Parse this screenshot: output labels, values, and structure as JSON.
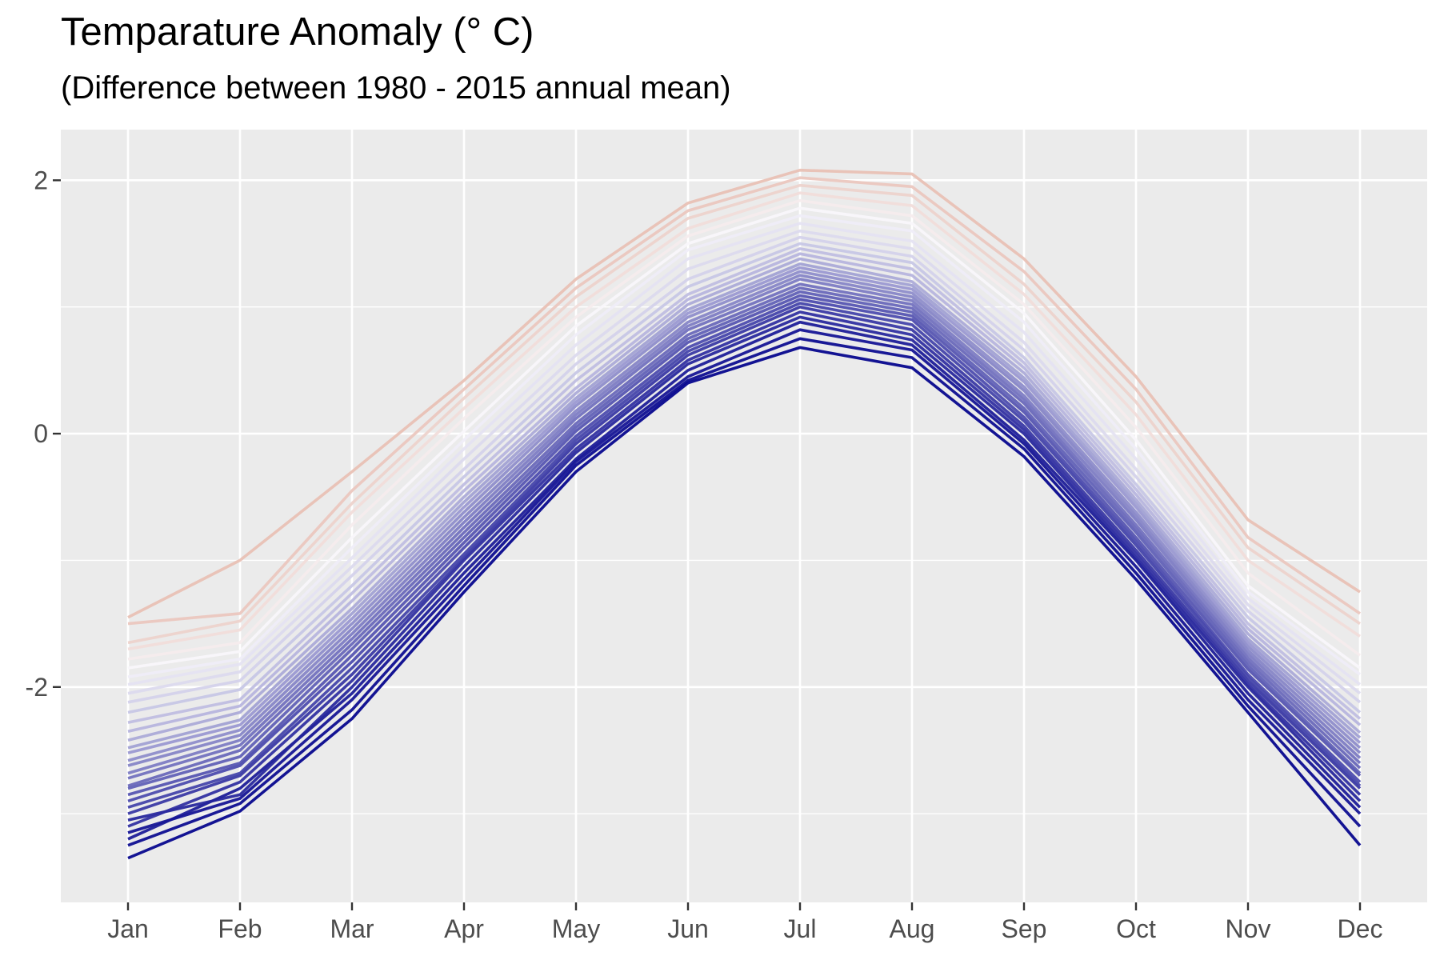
{
  "chart_data": {
    "type": "line",
    "title": "Temparature Anomaly (° C)",
    "subtitle": "(Difference between 1980 - 2015 annual mean)",
    "xlabel": "",
    "ylabel": "",
    "categories": [
      "Jan",
      "Feb",
      "Mar",
      "Apr",
      "May",
      "Jun",
      "Jul",
      "Aug",
      "Sep",
      "Oct",
      "Nov",
      "Dec"
    ],
    "y_ticks": [
      "2",
      "0",
      "-2"
    ],
    "ylim": [
      -3.7,
      2.4
    ],
    "grid": true,
    "legend": "none",
    "panel_background": "#EBEBEB",
    "gridline_color": "#FFFFFF",
    "color_scale": {
      "cold": "#00008B",
      "mid": "#F8F6FB",
      "warm": "#E8BFB3"
    },
    "series": [
      {
        "values": [
          -3.35,
          -2.98,
          -2.25,
          -1.25,
          -0.3,
          0.4,
          0.68,
          0.52,
          -0.18,
          -1.15,
          -2.2,
          -3.25
        ],
        "t": 0.0
      },
      {
        "values": [
          -3.25,
          -2.92,
          -2.18,
          -1.2,
          -0.25,
          0.42,
          0.75,
          0.6,
          -0.12,
          -1.1,
          -2.15,
          -3.1
        ],
        "t": 0.02
      },
      {
        "values": [
          -3.15,
          -2.88,
          -2.1,
          -1.15,
          -0.22,
          0.45,
          0.82,
          0.66,
          -0.08,
          -1.05,
          -2.1,
          -3.0
        ],
        "t": 0.05
      },
      {
        "values": [
          -3.2,
          -2.8,
          -2.05,
          -1.1,
          -0.2,
          0.5,
          0.88,
          0.7,
          -0.05,
          -1.0,
          -2.05,
          -2.95
        ],
        "t": 0.08
      },
      {
        "values": [
          -3.05,
          -2.85,
          -2.0,
          -1.05,
          -0.15,
          0.55,
          0.92,
          0.74,
          0.0,
          -0.98,
          -2.0,
          -2.9
        ],
        "t": 0.12
      },
      {
        "values": [
          -3.1,
          -2.75,
          -1.95,
          -1.0,
          -0.12,
          0.58,
          0.96,
          0.78,
          0.03,
          -0.95,
          -1.98,
          -2.85
        ],
        "t": 0.15
      },
      {
        "values": [
          -3.0,
          -2.7,
          -1.9,
          -0.98,
          -0.08,
          0.62,
          1.0,
          0.82,
          0.06,
          -0.92,
          -1.95,
          -2.8
        ],
        "t": 0.18
      },
      {
        "values": [
          -2.95,
          -2.68,
          -1.85,
          -0.95,
          -0.05,
          0.65,
          1.03,
          0.86,
          0.1,
          -0.88,
          -1.92,
          -2.78
        ],
        "t": 0.22
      },
      {
        "values": [
          -2.9,
          -2.62,
          -1.8,
          -0.9,
          -0.02,
          0.68,
          1.06,
          0.9,
          0.13,
          -0.85,
          -1.9,
          -2.75
        ],
        "t": 0.25
      },
      {
        "values": [
          -2.85,
          -2.6,
          -1.75,
          -0.86,
          0.02,
          0.72,
          1.09,
          0.93,
          0.17,
          -0.82,
          -1.86,
          -2.7
        ],
        "t": 0.28
      },
      {
        "values": [
          -2.8,
          -2.55,
          -1.7,
          -0.82,
          0.05,
          0.75,
          1.12,
          0.96,
          0.2,
          -0.78,
          -1.83,
          -2.68
        ],
        "t": 0.32
      },
      {
        "values": [
          -2.78,
          -2.5,
          -1.66,
          -0.78,
          0.08,
          0.78,
          1.15,
          0.99,
          0.24,
          -0.75,
          -1.8,
          -2.64
        ],
        "t": 0.35
      },
      {
        "values": [
          -2.72,
          -2.46,
          -1.62,
          -0.74,
          0.12,
          0.82,
          1.18,
          1.02,
          0.27,
          -0.72,
          -1.77,
          -2.6
        ],
        "t": 0.38
      },
      {
        "values": [
          -2.68,
          -2.42,
          -1.58,
          -0.7,
          0.15,
          0.85,
          1.22,
          1.05,
          0.3,
          -0.68,
          -1.74,
          -2.56
        ],
        "t": 0.42
      },
      {
        "values": [
          -2.62,
          -2.38,
          -1.54,
          -0.66,
          0.18,
          0.88,
          1.25,
          1.08,
          0.34,
          -0.65,
          -1.71,
          -2.52
        ],
        "t": 0.45
      },
      {
        "values": [
          -2.58,
          -2.34,
          -1.5,
          -0.62,
          0.22,
          0.92,
          1.28,
          1.11,
          0.37,
          -0.62,
          -1.68,
          -2.48
        ],
        "t": 0.48
      },
      {
        "values": [
          -2.52,
          -2.3,
          -1.46,
          -0.58,
          0.25,
          0.95,
          1.31,
          1.14,
          0.41,
          -0.58,
          -1.65,
          -2.44
        ],
        "t": 0.52
      },
      {
        "values": [
          -2.48,
          -2.26,
          -1.42,
          -0.54,
          0.28,
          0.98,
          1.34,
          1.17,
          0.44,
          -0.55,
          -1.62,
          -2.4
        ],
        "t": 0.55
      },
      {
        "values": [
          -2.42,
          -2.2,
          -1.38,
          -0.5,
          0.32,
          1.02,
          1.38,
          1.2,
          0.48,
          -0.52,
          -1.58,
          -2.36
        ],
        "t": 0.58
      },
      {
        "values": [
          -2.35,
          -2.15,
          -1.32,
          -0.45,
          0.36,
          1.06,
          1.42,
          1.25,
          0.52,
          -0.48,
          -1.54,
          -2.3
        ],
        "t": 0.62
      },
      {
        "values": [
          -2.28,
          -2.1,
          -1.26,
          -0.4,
          0.42,
          1.1,
          1.46,
          1.3,
          0.56,
          -0.44,
          -1.5,
          -2.25
        ],
        "t": 0.65
      },
      {
        "values": [
          -2.2,
          -2.02,
          -1.2,
          -0.34,
          0.48,
          1.16,
          1.5,
          1.35,
          0.6,
          -0.4,
          -1.45,
          -2.2
        ],
        "t": 0.68
      },
      {
        "values": [
          -2.12,
          -1.95,
          -1.12,
          -0.28,
          0.55,
          1.22,
          1.55,
          1.4,
          0.66,
          -0.34,
          -1.4,
          -2.12
        ],
        "t": 0.72
      },
      {
        "values": [
          -2.05,
          -1.88,
          -1.05,
          -0.2,
          0.62,
          1.3,
          1.6,
          1.46,
          0.72,
          -0.28,
          -1.35,
          -2.05
        ],
        "t": 0.75
      },
      {
        "values": [
          -1.98,
          -1.82,
          -0.98,
          -0.12,
          0.7,
          1.38,
          1.66,
          1.52,
          0.8,
          -0.2,
          -1.3,
          -1.98
        ],
        "t": 0.78
      },
      {
        "values": [
          -1.92,
          -1.78,
          -0.9,
          -0.05,
          0.78,
          1.45,
          1.72,
          1.6,
          0.88,
          -0.12,
          -1.25,
          -1.9
        ],
        "t": 0.82
      },
      {
        "values": [
          -1.85,
          -1.72,
          -0.82,
          0.02,
          0.85,
          1.5,
          1.78,
          1.66,
          0.95,
          -0.05,
          -1.2,
          -1.85
        ],
        "t": 0.85
      },
      {
        "values": [
          -1.78,
          -1.65,
          -0.72,
          0.12,
          0.92,
          1.56,
          1.84,
          1.72,
          1.02,
          0.05,
          -1.1,
          -1.75
        ],
        "t": 0.88
      },
      {
        "values": [
          -1.7,
          -1.55,
          -0.62,
          0.2,
          1.0,
          1.62,
          1.9,
          1.8,
          1.1,
          0.15,
          -1.0,
          -1.6
        ],
        "t": 0.92
      },
      {
        "values": [
          -1.65,
          -1.48,
          -0.55,
          0.28,
          1.08,
          1.7,
          1.96,
          1.88,
          1.18,
          0.25,
          -0.9,
          -1.5
        ],
        "t": 0.95
      },
      {
        "values": [
          -1.5,
          -1.42,
          -0.45,
          0.35,
          1.15,
          1.76,
          2.02,
          1.95,
          1.28,
          0.35,
          -0.82,
          -1.42
        ],
        "t": 0.98
      },
      {
        "values": [
          -1.45,
          -1.0,
          -0.3,
          0.42,
          1.22,
          1.82,
          2.08,
          2.05,
          1.38,
          0.45,
          -0.68,
          -1.25
        ],
        "t": 1.0
      }
    ]
  }
}
